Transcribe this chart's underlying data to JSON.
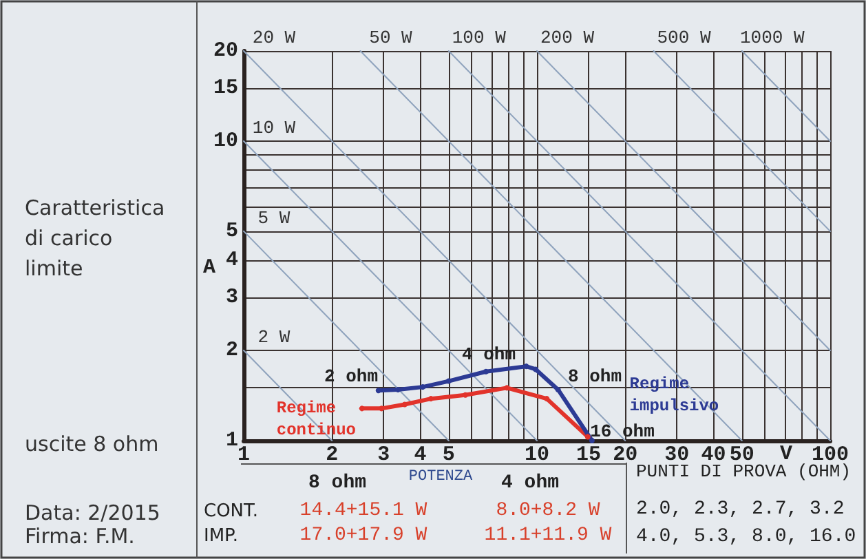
{
  "chart_data": {
    "type": "line",
    "title": "Caratteristica di carico limite",
    "subtitle": "uscite 8 ohm",
    "xlabel": "V",
    "ylabel": "A",
    "log": "xy",
    "grid": true,
    "legend": false,
    "marker": "circle",
    "line_style": "solid",
    "xlim": [
      1,
      100
    ],
    "xticks": [
      1,
      2,
      3,
      4,
      5,
      {
        "value": 6,
        "label": null
      },
      {
        "value": 7,
        "label": null
      },
      {
        "value": 8,
        "label": null
      },
      {
        "value": 9,
        "label": null
      },
      10,
      15,
      20,
      30,
      40,
      50,
      {
        "value": 60,
        "label": null
      },
      {
        "value": 70,
        "label": null
      },
      {
        "value": 80,
        "label": null
      },
      {
        "value": 90,
        "label": null
      },
      100
    ],
    "ylim": [
      1,
      20
    ],
    "yticks": [
      1,
      {
        "value": 1.5,
        "label": null
      },
      2,
      3,
      4,
      5,
      {
        "value": 6,
        "label": null
      },
      {
        "value": 7,
        "label": null
      },
      {
        "value": 8,
        "label": null
      },
      {
        "value": 9,
        "label": null
      },
      10,
      15,
      20
    ],
    "series": [
      {
        "name": "2 W",
        "x": [
          1,
          2
        ],
        "values": [
          2,
          1
        ],
        "color": "#8fa3bd",
        "marker": "none"
      },
      {
        "name": "5 W",
        "x": [
          1,
          5
        ],
        "values": [
          5,
          1
        ],
        "color": "#8fa3bd",
        "marker": "none"
      },
      {
        "name": "10 W",
        "x": [
          1,
          10
        ],
        "values": [
          10,
          1
        ],
        "color": "#8fa3bd",
        "marker": "none"
      },
      {
        "name": "20 W",
        "x": [
          1,
          20
        ],
        "values": [
          20,
          1
        ],
        "color": "#8fa3bd",
        "marker": "none"
      },
      {
        "name": "50 W",
        "x": [
          2.5,
          50
        ],
        "values": [
          20,
          1
        ],
        "color": "#8fa3bd",
        "marker": "none"
      },
      {
        "name": "100 W",
        "x": [
          5,
          100
        ],
        "values": [
          20,
          1
        ],
        "color": "#8fa3bd",
        "marker": "none"
      },
      {
        "name": "200 W",
        "x": [
          10,
          100
        ],
        "values": [
          20,
          2
        ],
        "color": "#8fa3bd",
        "marker": "none"
      },
      {
        "name": "500 W",
        "x": [
          25,
          100
        ],
        "values": [
          20,
          5
        ],
        "color": "#8fa3bd",
        "marker": "none"
      },
      {
        "name": "1000 W",
        "x": [
          50,
          100
        ],
        "values": [
          20,
          10
        ],
        "color": "#8fa3bd",
        "marker": "none"
      },
      {
        "name": "Regime continuo",
        "x": [
          2.53,
          2.95,
          3.54,
          4.35,
          5.7,
          7.9,
          10.8,
          14.9
        ],
        "values": [
          1.28,
          1.28,
          1.32,
          1.38,
          1.42,
          1.5,
          1.38,
          1.03
        ],
        "color": "#e2332b"
      },
      {
        "name": "Regime impulsivo",
        "x": [
          2.88,
          3.36,
          4.08,
          5.0,
          6.7,
          9.2,
          9.9,
          11.8,
          15.4
        ],
        "values": [
          1.47,
          1.48,
          1.51,
          1.58,
          1.7,
          1.77,
          1.73,
          1.48,
          1.0
        ],
        "color": "#2c3a94"
      }
    ],
    "annotations": [
      "2 ohm",
      "4 ohm",
      "8 ohm",
      "16 ohm",
      "POTENZA",
      "8 ohm",
      "4 ohm",
      "CONT.",
      "14.4+15.1 W",
      "8.0+8.2 W",
      "IMP.",
      "17.0+17.9 W",
      "11.1+11.9 W",
      "PUNTI DI PROVA (OHM)",
      "2.0, 2.3, 2.7, 3.2",
      "4.0, 5.3, 8.0, 16.0",
      "Data: 2/2015",
      "Firma: F.M."
    ]
  }
}
